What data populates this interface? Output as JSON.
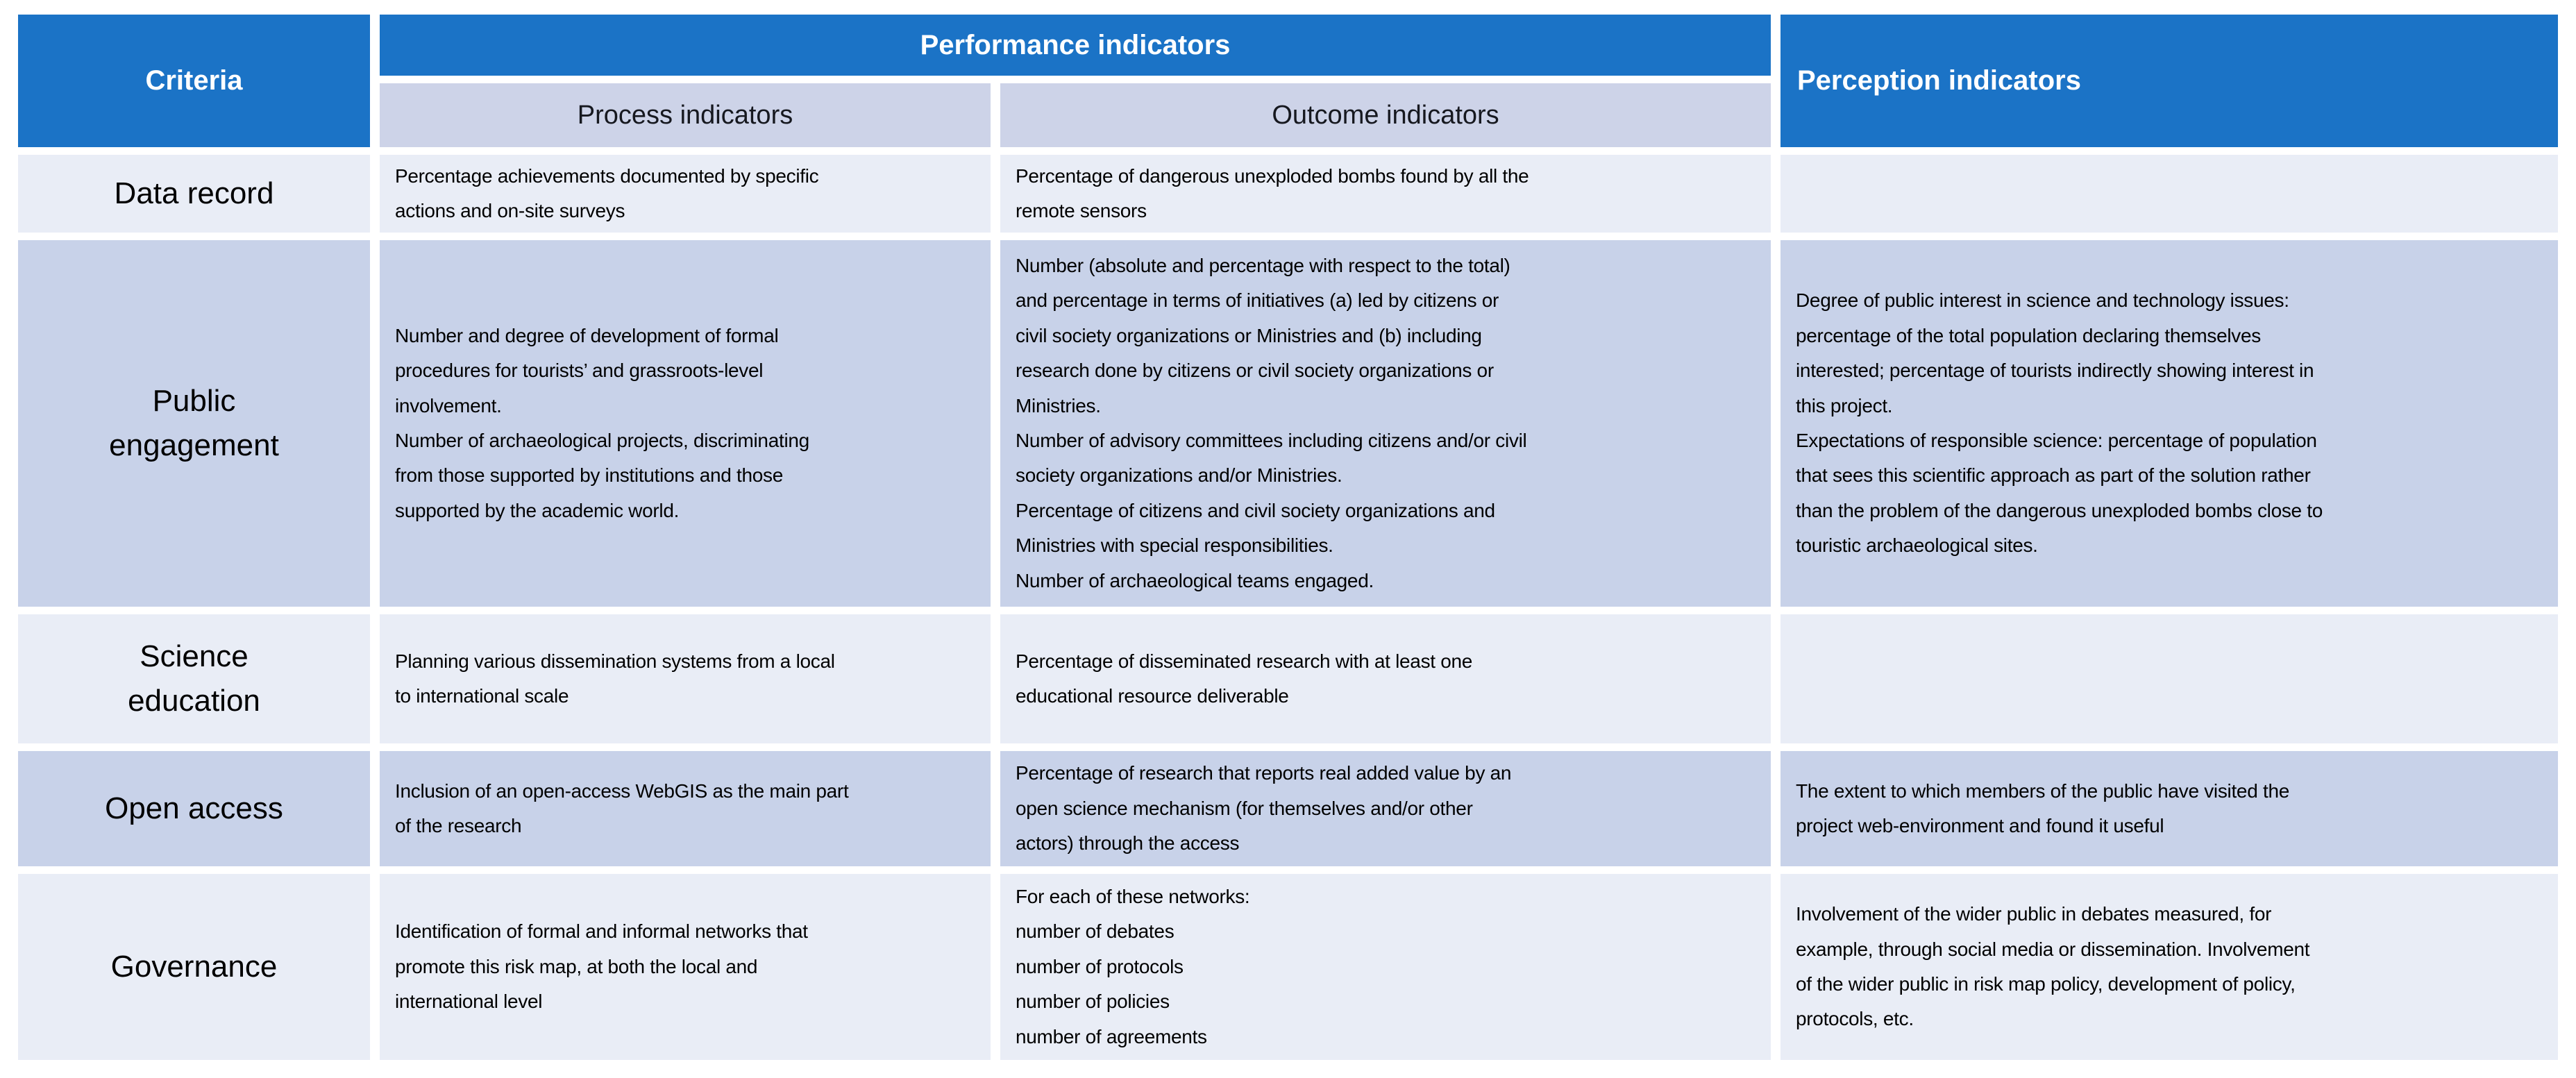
{
  "table_title": "Criteria and indicators table",
  "colors": {
    "header_blue": "#1B73C6",
    "subheader_bg": "#CDD3E8",
    "row_light_bg": "#E9EDF6",
    "row_dark_bg": "#C8D2E9",
    "header_text": "#ffffff",
    "body_text": "#000000"
  },
  "header": {
    "criteria": "Criteria",
    "performance": "Performance indicators",
    "process": "Process indicators",
    "outcome": "Outcome indicators",
    "perception": "Perception indicators"
  },
  "rows": [
    {
      "criteria": "Data record",
      "process": "Percentage achievements documented by specific\nactions and on-site surveys",
      "outcome": "Percentage of dangerous unexploded bombs found by all the\nremote sensors",
      "perception": ""
    },
    {
      "criteria": "Public\nengagement",
      "process": "Number and degree of development of formal\nprocedures for tourists’ and grassroots-level\ninvolvement.\nNumber of archaeological projects, discriminating\nfrom those supported by institutions and those\nsupported by the academic world.",
      "outcome": "Number (absolute and percentage with respect to the total)\nand percentage in terms of initiatives (a) led by citizens or\ncivil society organizations or Ministries and (b) including\nresearch done by citizens or civil society organizations or\nMinistries.\nNumber of advisory committees including citizens and/or civil\nsociety organizations and/or Ministries.\nPercentage of citizens and civil society organizations and\nMinistries with special responsibilities.\nNumber of archaeological teams engaged.",
      "perception": "Degree of public interest in science and technology issues:\npercentage of the total population declaring themselves\ninterested; percentage of tourists indirectly showing interest in\nthis project.\nExpectations of responsible science: percentage of population\nthat sees this scientific approach as part of the solution rather\nthan the problem of the dangerous unexploded bombs close to\ntouristic archaeological sites."
    },
    {
      "criteria": "Science\neducation",
      "process": "Planning various dissemination systems from a local\nto international scale",
      "outcome": "Percentage of disseminated research with at least one\neducational resource deliverable",
      "perception": ""
    },
    {
      "criteria": "Open access",
      "process": "Inclusion of an open-access WebGIS as the main part\nof the research",
      "outcome": "Percentage of research that reports real added value by an\nopen science mechanism (for themselves and/or other\nactors) through the access",
      "perception": "The extent to which members of the public have visited the\nproject web-environment and found it useful"
    },
    {
      "criteria": "Governance",
      "process": "Identification of formal and informal networks that\npromote this risk map, at both the local and\ninternational level",
      "outcome": "For each of these networks:\nnumber of debates\nnumber of protocols\nnumber of policies\nnumber of agreements",
      "perception": "Involvement of the wider public in debates measured, for\nexample, through social media or dissemination. Involvement\nof the wider public in risk map policy, development of policy,\nprotocols, etc."
    }
  ]
}
